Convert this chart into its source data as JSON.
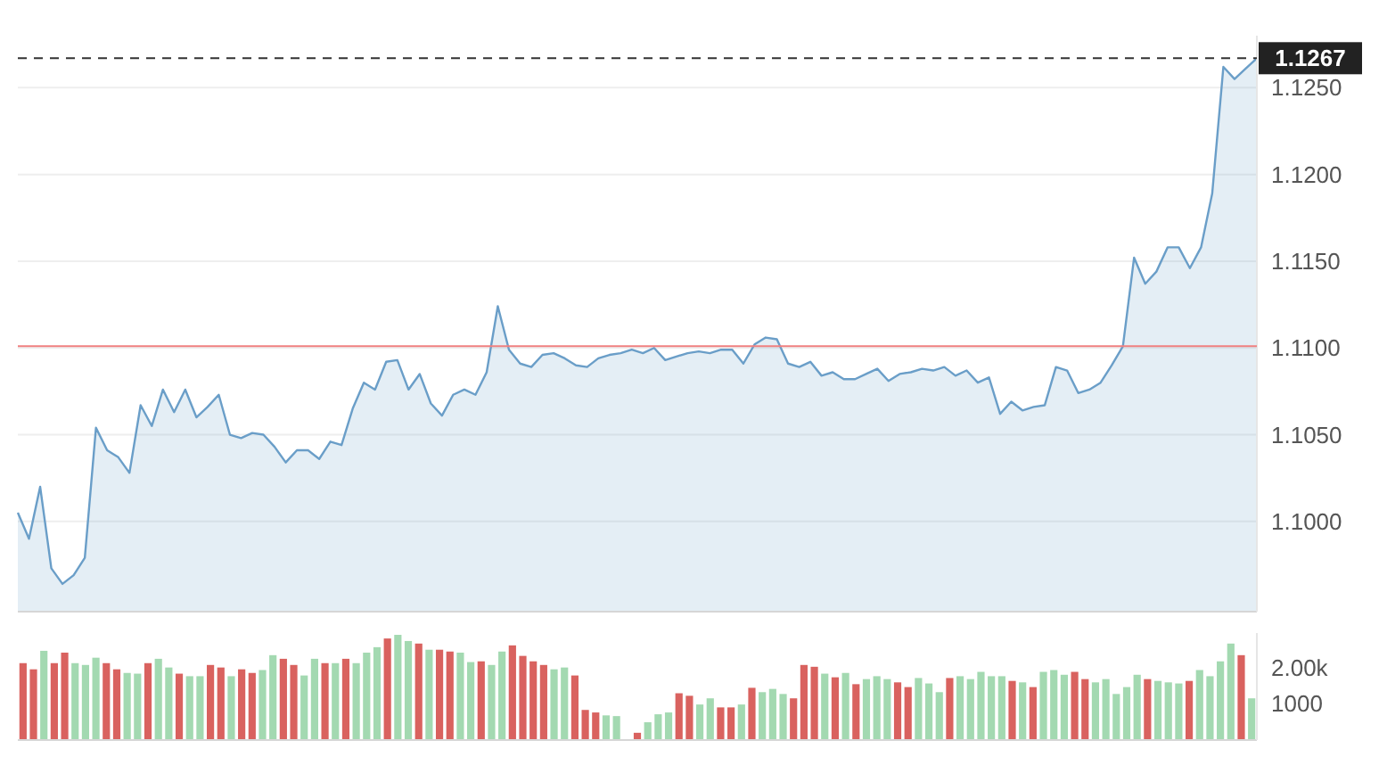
{
  "chart_data": [
    {
      "type": "area",
      "tick_labels": "y",
      "grid": "y",
      "categories": [
        null,
        null,
        null,
        null,
        null,
        null,
        null,
        null,
        null,
        null,
        null,
        null,
        null,
        null,
        null,
        null,
        null,
        null,
        null,
        null,
        null,
        null,
        null,
        null,
        null,
        null,
        null,
        null,
        null,
        null,
        null,
        null,
        null,
        null,
        null,
        null,
        null,
        null,
        null,
        null,
        null,
        null,
        null,
        null,
        null,
        null,
        null,
        null,
        null,
        null,
        null,
        null,
        null,
        null,
        null,
        null,
        null,
        null,
        null,
        null,
        null,
        null,
        null,
        null,
        null,
        null,
        null,
        null,
        null,
        null,
        null,
        null,
        null,
        null,
        null,
        null,
        null,
        null,
        null,
        null,
        null,
        null,
        null,
        null,
        null,
        null,
        null,
        null,
        null,
        null,
        null,
        null,
        null,
        null,
        null,
        null,
        null,
        null,
        null,
        null,
        null,
        null,
        null,
        null,
        null,
        null,
        null,
        null,
        null,
        null,
        null,
        null
      ],
      "series": [
        {
          "color": "#6a9ec8",
          "values": [
            1.1005,
            1.099,
            1.102,
            1.0973,
            1.0964,
            1.0969,
            1.0979,
            1.1054,
            1.1041,
            1.1037,
            1.1028,
            1.1067,
            1.1055,
            1.1076,
            1.1063,
            1.1076,
            1.106,
            1.1066,
            1.1073,
            1.105,
            1.1048,
            1.1051,
            1.105,
            1.1043,
            1.1034,
            1.1041,
            1.1041,
            1.1036,
            1.1046,
            1.1044,
            1.1065,
            1.108,
            1.1076,
            1.1092,
            1.1093,
            1.1076,
            1.1085,
            1.1068,
            1.1061,
            1.1073,
            1.1076,
            1.1073,
            1.1086,
            1.1124,
            1.1099,
            1.1091,
            1.1089,
            1.1096,
            1.1097,
            1.1094,
            1.109,
            1.1089,
            1.1094,
            1.1096,
            1.1097,
            1.1099,
            1.1097,
            1.11,
            1.1093,
            1.1095,
            1.1097,
            1.1098,
            1.1097,
            1.1099,
            1.1099,
            1.1091,
            1.1102,
            1.1106,
            1.1105,
            1.1091,
            1.1089,
            1.1092,
            1.1084,
            1.1086,
            1.1082,
            1.1082,
            1.1085,
            1.1088,
            1.1081,
            1.1085,
            1.1086,
            1.1088,
            1.1087,
            1.1089,
            1.1084,
            1.1087,
            1.108,
            1.1083,
            1.1062,
            1.1069,
            1.1064,
            1.1066,
            1.1067,
            1.1089,
            1.1087,
            1.1074,
            1.1076,
            1.108,
            1.109,
            1.1101,
            1.1152,
            1.1137,
            1.1144,
            1.1158,
            1.1158,
            1.1146,
            1.1158,
            1.1189,
            1.1262,
            1.1255,
            1.1261,
            1.1267
          ]
        }
      ],
      "ylim": [
        1.0948,
        1.128
      ],
      "yticks": [
        {
          "value": 1.1,
          "label": "1.1000"
        },
        {
          "value": 1.105,
          "label": "1.1050"
        },
        {
          "value": 1.11,
          "label": "1.1100"
        },
        {
          "value": 1.115,
          "label": "1.1150"
        },
        {
          "value": 1.12,
          "label": "1.1200"
        },
        {
          "value": 1.125,
          "label": "1.1250"
        }
      ],
      "ref_lines": [
        {
          "axis": "y",
          "value": 1.1267,
          "label": "1.1267",
          "color": "#333333",
          "line_style": "dashed"
        },
        {
          "axis": "y",
          "value": 1.1101,
          "color": "#f08080",
          "line_style": "solid"
        }
      ]
    },
    {
      "type": "bar",
      "tick_labels": "y",
      "categories": [
        null,
        null,
        null,
        null,
        null,
        null,
        null,
        null,
        null,
        null,
        null,
        null,
        null,
        null,
        null,
        null,
        null,
        null,
        null,
        null,
        null,
        null,
        null,
        null,
        null,
        null,
        null,
        null,
        null,
        null,
        null,
        null,
        null,
        null,
        null,
        null,
        null,
        null,
        null,
        null,
        null,
        null,
        null,
        null,
        null,
        null,
        null,
        null,
        null,
        null,
        null,
        null,
        null,
        null,
        null,
        null,
        null,
        null,
        null,
        null,
        null,
        null,
        null,
        null,
        null,
        null,
        null,
        null,
        null,
        null,
        null,
        null,
        null,
        null,
        null,
        null,
        null,
        null,
        null,
        null,
        null,
        null,
        null,
        null,
        null,
        null,
        null,
        null,
        null,
        null,
        null,
        null,
        null,
        null,
        null,
        null,
        null,
        null,
        null,
        null,
        null,
        null,
        null,
        null,
        null,
        null,
        null,
        null,
        null,
        null,
        null,
        null,
        null,
        null,
        null,
        null,
        null,
        null,
        null
      ],
      "values": [
        2120,
        1950,
        2460,
        2120,
        2410,
        2120,
        2070,
        2270,
        2120,
        1950,
        1850,
        1830,
        2120,
        2240,
        2000,
        1830,
        1760,
        1760,
        2070,
        2000,
        1760,
        1950,
        1850,
        1930,
        2340,
        2240,
        2070,
        1780,
        2240,
        2120,
        2120,
        2240,
        2120,
        2410,
        2560,
        2800,
        2900,
        2730,
        2660,
        2490,
        2490,
        2440,
        2410,
        2150,
        2170,
        2070,
        2440,
        2610,
        2320,
        2170,
        2070,
        1950,
        2000,
        1780,
        830,
        760,
        680,
        660,
        null,
        200,
        490,
        710,
        760,
        1290,
        1220,
        980,
        1150,
        900,
        900,
        980,
        1440,
        1320,
        1410,
        1270,
        1150,
        2070,
        2020,
        1830,
        1730,
        1850,
        1540,
        1680,
        1760,
        1680,
        1590,
        1460,
        1710,
        1560,
        1320,
        1710,
        1760,
        1680,
        1880,
        1760,
        1760,
        1630,
        1590,
        1460,
        1880,
        1930,
        1800,
        1880,
        1680,
        1590,
        1680,
        1270,
        1460,
        1800,
        1680,
        1630,
        1590,
        1560,
        1630,
        1930,
        1760,
        2170,
        2660,
        2340,
        1150
      ],
      "colors": [
        "#d9625f",
        "#d9625f",
        "#a3d9b1",
        "#d9625f",
        "#d9625f",
        "#a3d9b1",
        "#a3d9b1",
        "#a3d9b1",
        "#d9625f",
        "#d9625f",
        "#a3d9b1",
        "#a3d9b1",
        "#d9625f",
        "#a3d9b1",
        "#a3d9b1",
        "#d9625f",
        "#a3d9b1",
        "#a3d9b1",
        "#d9625f",
        "#d9625f",
        "#a3d9b1",
        "#d9625f",
        "#d9625f",
        "#a3d9b1",
        "#a3d9b1",
        "#d9625f",
        "#d9625f",
        "#a3d9b1",
        "#a3d9b1",
        "#d9625f",
        "#a3d9b1",
        "#d9625f",
        "#a3d9b1",
        "#a3d9b1",
        "#a3d9b1",
        "#d9625f",
        "#a3d9b1",
        "#a3d9b1",
        "#d9625f",
        "#a3d9b1",
        "#d9625f",
        "#d9625f",
        "#a3d9b1",
        "#a3d9b1",
        "#d9625f",
        "#a3d9b1",
        "#a3d9b1",
        "#d9625f",
        "#d9625f",
        "#d9625f",
        "#d9625f",
        "#a3d9b1",
        "#a3d9b1",
        "#d9625f",
        "#d9625f",
        "#d9625f",
        "#a3d9b1",
        "#a3d9b1",
        null,
        "#d9625f",
        "#a3d9b1",
        "#a3d9b1",
        "#a3d9b1",
        "#d9625f",
        "#d9625f",
        "#a3d9b1",
        "#a3d9b1",
        "#d9625f",
        "#d9625f",
        "#a3d9b1",
        "#d9625f",
        "#a3d9b1",
        "#a3d9b1",
        "#a3d9b1",
        "#d9625f",
        "#d9625f",
        "#d9625f",
        "#a3d9b1",
        "#d9625f",
        "#a3d9b1",
        "#d9625f",
        "#a3d9b1",
        "#a3d9b1",
        "#a3d9b1",
        "#d9625f",
        "#d9625f",
        "#a3d9b1",
        "#a3d9b1",
        "#a3d9b1",
        "#d9625f",
        "#a3d9b1",
        "#a3d9b1",
        "#a3d9b1",
        "#a3d9b1",
        "#a3d9b1",
        "#d9625f",
        "#a3d9b1",
        "#d9625f",
        "#a3d9b1",
        "#a3d9b1",
        "#a3d9b1",
        "#d9625f",
        "#d9625f",
        "#a3d9b1",
        "#a3d9b1",
        "#a3d9b1",
        "#a3d9b1",
        "#a3d9b1",
        "#d9625f",
        "#a3d9b1",
        "#a3d9b1",
        "#a3d9b1",
        "#d9625f",
        "#a3d9b1",
        "#a3d9b1",
        "#a3d9b1",
        "#a3d9b1",
        "#d9625f",
        "#a3d9b1"
      ],
      "ylim": [
        0,
        2950
      ],
      "yticks": [
        1000,
        {
          "value": 2000,
          "label": "2.00k"
        }
      ]
    }
  ]
}
